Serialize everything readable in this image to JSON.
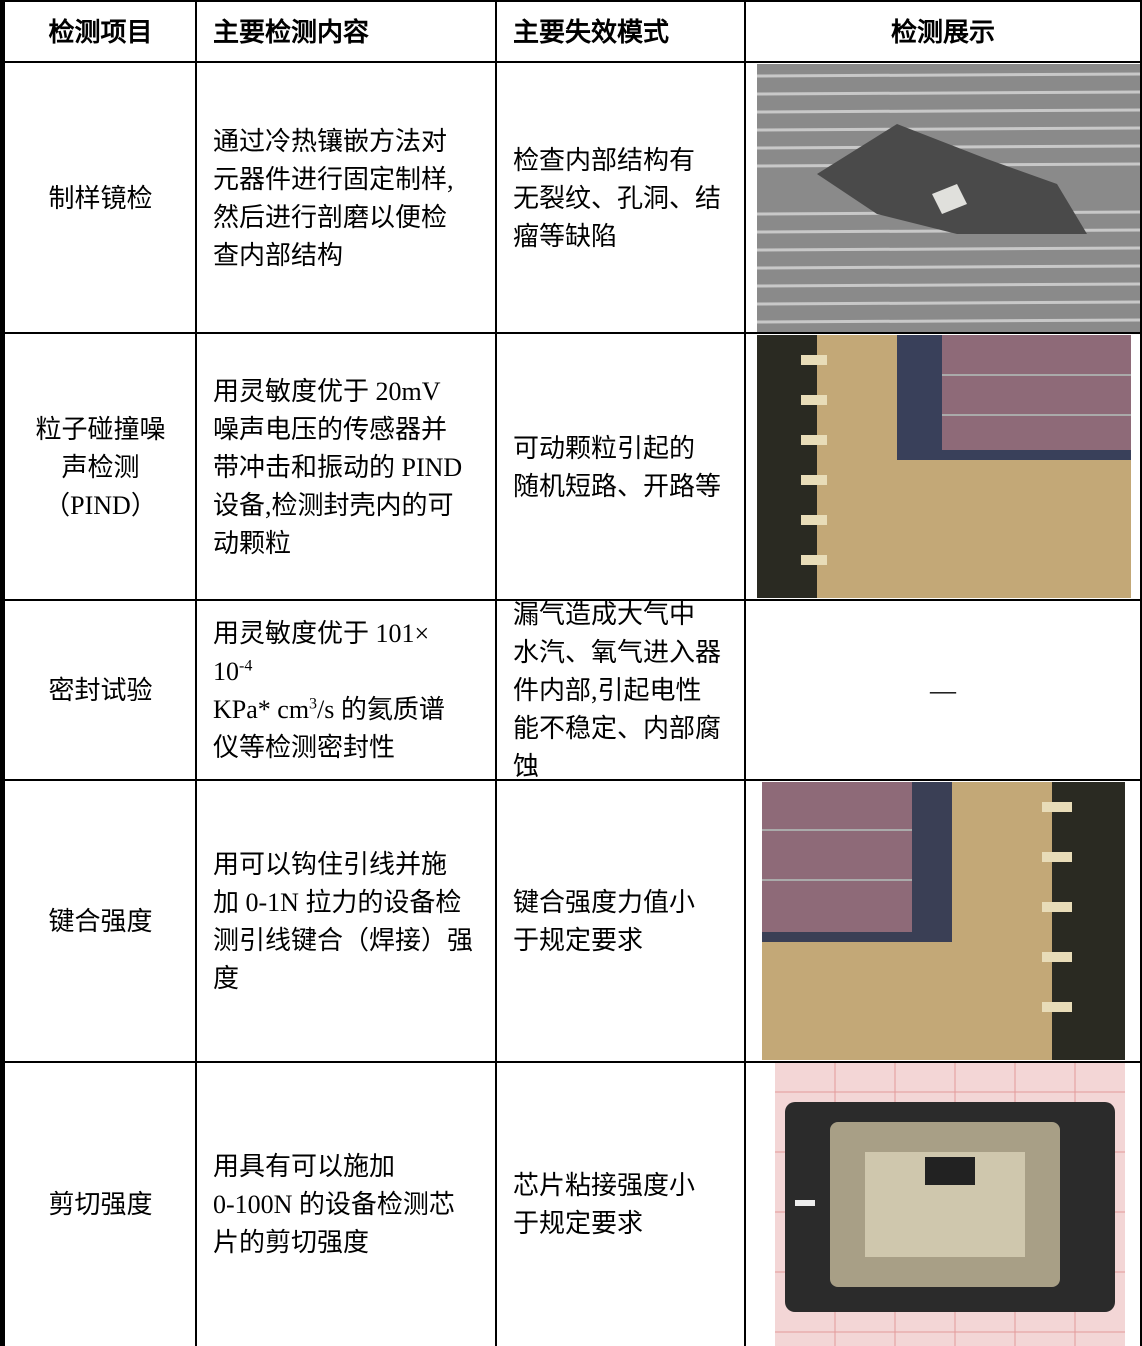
{
  "table": {
    "header": [
      "检测项目",
      "主要检测内容",
      "主要失效模式",
      "检测展示"
    ],
    "rows": [
      {
        "item": [
          "制样镜检"
        ],
        "content": [
          "通过冷热镶嵌方法对",
          "元器件进行固定制样,",
          "然后进行剖磨以便检",
          "查内部结构"
        ],
        "failure": [
          "检查内部结构有",
          "无裂纹、孔洞、结",
          "瘤等缺陷"
        ]
      },
      {
        "item": [
          "粒子碰撞噪",
          "声检测",
          "（PIND）"
        ],
        "content": [
          "用灵敏度优于 20mV",
          "噪声电压的传感器并",
          "带冲击和振动的 PIND",
          "设备,检测封壳内的可",
          "动颗粒"
        ],
        "failure": [
          "可动颗粒引起的",
          "随机短路、开路等"
        ]
      },
      {
        "item": [
          "密封试验"
        ],
        "content": [
          [
            {
              "text": "用灵敏度优于 101×"
            }
          ],
          [
            {
              "text": "10"
            },
            {
              "sup": "-4"
            }
          ],
          [
            {
              "text": "KPa* cm"
            },
            {
              "sup": "3"
            },
            {
              "text": "/s 的氦质谱"
            }
          ],
          [
            {
              "text": "仪等检测密封性"
            }
          ]
        ],
        "failure": [
          "漏气造成大气中",
          "水汽、氧气进入器",
          "件内部,引起电性",
          "能不稳定、内部腐",
          "蚀"
        ],
        "display": "—"
      },
      {
        "item": [
          "键合强度"
        ],
        "content": [
          "用可以钩住引线并施",
          "加 0-1N 拉力的设备检",
          "测引线键合（焊接）强",
          "度"
        ],
        "failure": [
          "键合强度力值小",
          "于规定要求"
        ]
      },
      {
        "item": [
          "剪切强度"
        ],
        "content": [
          "用具有可以施加",
          "0-100N 的设备检测芯",
          "片的剪切强度"
        ],
        "failure": [
          "芯片粘接强度小",
          "于规定要求"
        ]
      }
    ]
  }
}
